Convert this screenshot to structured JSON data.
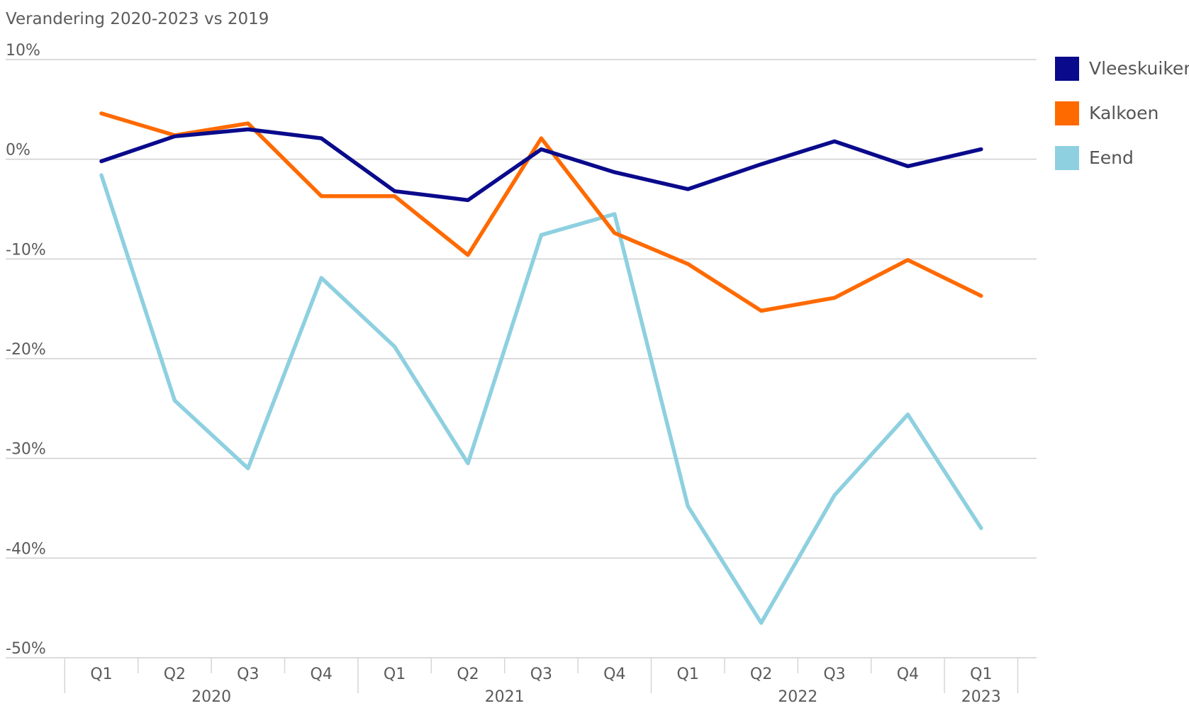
{
  "chart_data": {
    "type": "line",
    "title": "Verandering 2020-2023 vs 2019",
    "xlabel": "",
    "ylabel": "",
    "ylim": [
      -50,
      10
    ],
    "yticks": [
      10,
      0,
      -10,
      -20,
      -30,
      -40,
      -50
    ],
    "ytick_labels": [
      "10%",
      "0%",
      "-10%",
      "-20%",
      "-30%",
      "-40%",
      "-50%"
    ],
    "categories": [
      "Q1",
      "Q2",
      "Q3",
      "Q4",
      "Q1",
      "Q2",
      "Q3",
      "Q4",
      "Q1",
      "Q2",
      "Q3",
      "Q4",
      "Q1"
    ],
    "groups": [
      {
        "label": "2020",
        "count": 4
      },
      {
        "label": "2021",
        "count": 4
      },
      {
        "label": "2022",
        "count": 4
      },
      {
        "label": "2023",
        "count": 1
      }
    ],
    "grid": true,
    "legend_position": "right",
    "series": [
      {
        "name": "Vleeskuiken",
        "color": "#0a0a8c",
        "values": [
          -0.2,
          2.3,
          3.0,
          2.1,
          -3.2,
          -4.1,
          1.0,
          -1.3,
          -3.0,
          -0.5,
          1.8,
          -0.7,
          1.0
        ]
      },
      {
        "name": "Kalkoen",
        "color": "#ff6a00",
        "values": [
          4.6,
          2.4,
          3.6,
          -3.7,
          -3.7,
          -9.6,
          2.1,
          -7.4,
          -10.5,
          -15.2,
          -13.9,
          -10.1,
          -13.7
        ]
      },
      {
        "name": "Eend",
        "color": "#8ed0e0",
        "values": [
          -1.6,
          -24.2,
          -31.0,
          -11.9,
          -18.8,
          -30.5,
          -7.6,
          -5.5,
          -34.8,
          -46.5,
          -33.7,
          -25.6,
          -37.0
        ]
      }
    ]
  }
}
